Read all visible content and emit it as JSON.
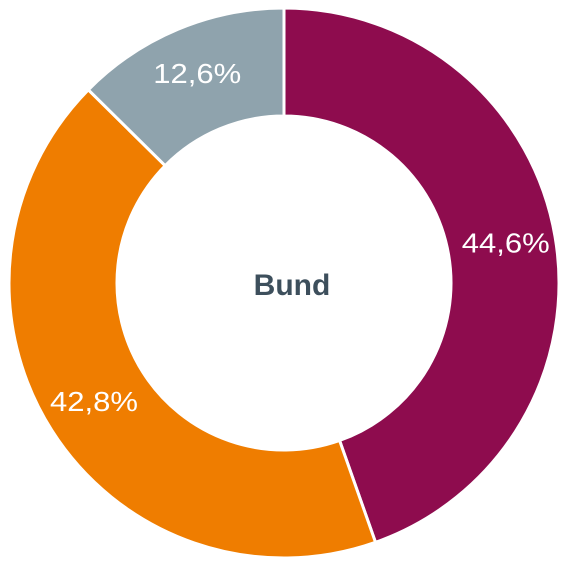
{
  "chart_data": {
    "type": "donut",
    "title": "Bund",
    "categories": [
      null,
      null,
      null
    ],
    "series": [
      {
        "values": [
          44.6,
          42.8,
          12.6
        ],
        "value_labels": [
          "44,6%",
          "42,8%",
          "12,6%"
        ],
        "colors": [
          "#8e0c4e",
          "#ef7d00",
          "#8fa3ad"
        ]
      }
    ]
  }
}
